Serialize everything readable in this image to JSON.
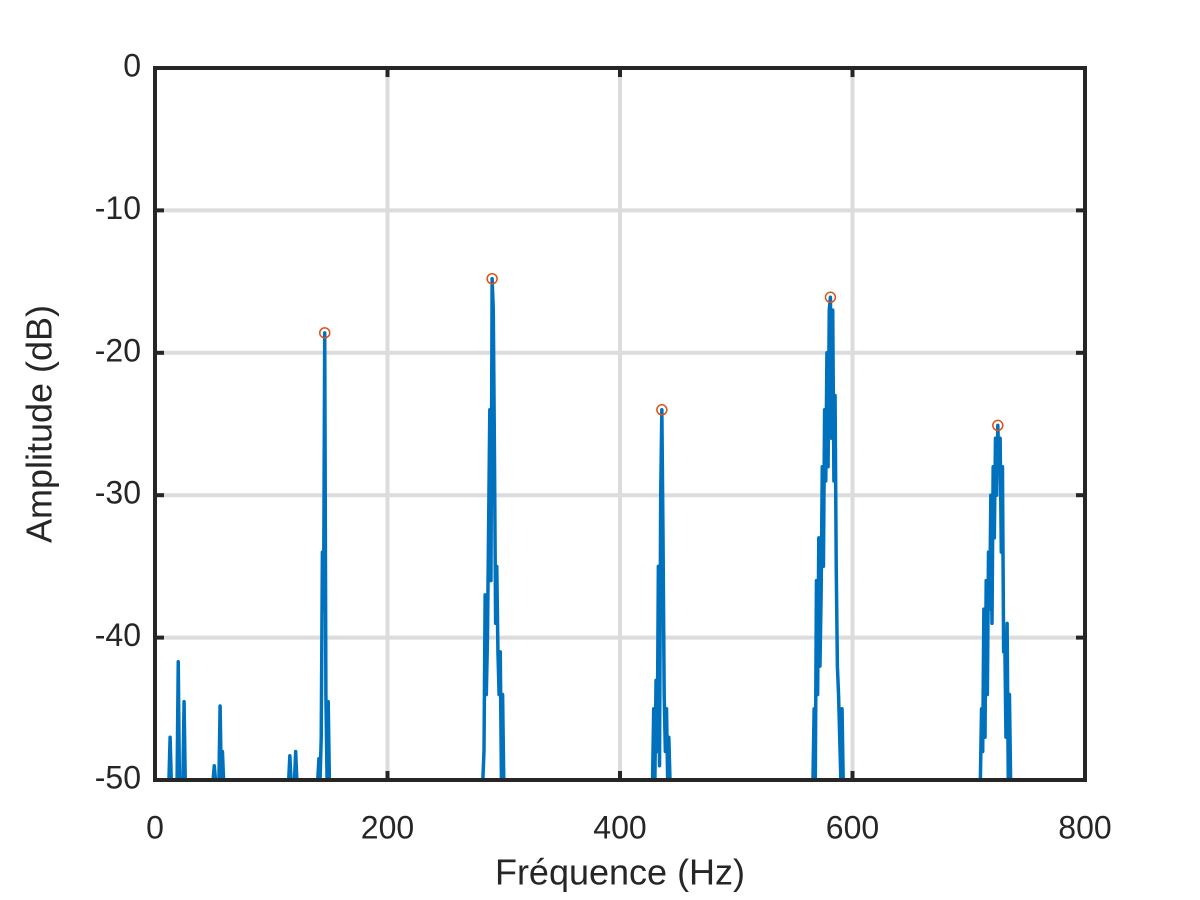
{
  "chart_data": {
    "type": "line",
    "x_label": "Fréquence (Hz)",
    "y_label": "Amplitude (dB)",
    "xlim": [
      0,
      800
    ],
    "ylim": [
      -50,
      0
    ],
    "xticks": [
      0,
      200,
      400,
      600,
      800
    ],
    "yticks": [
      -50,
      -40,
      -30,
      -20,
      -10,
      0
    ],
    "grid": true,
    "series": [
      {
        "color": "#0072bd",
        "x": [
          0,
          12,
          13,
          14,
          19,
          20,
          21,
          24,
          25,
          26,
          50,
          51,
          52,
          55,
          56,
          57,
          58,
          59,
          115,
          116,
          117,
          120,
          121,
          122,
          140,
          141,
          142,
          143,
          144,
          145,
          146,
          147,
          148,
          149,
          150,
          282,
          283,
          284,
          285,
          286,
          287,
          288,
          289,
          290,
          291,
          292,
          293,
          294,
          295,
          296,
          297,
          298,
          299,
          300,
          428,
          429,
          430,
          431,
          432,
          433,
          434,
          435,
          436,
          437,
          438,
          439,
          440,
          441,
          442,
          443,
          566,
          567,
          568,
          569,
          570,
          571,
          572,
          573,
          574,
          575,
          576,
          577,
          578,
          579,
          580,
          581,
          582,
          583,
          584,
          585,
          586,
          587,
          588,
          589,
          590,
          591,
          592,
          710,
          711,
          712,
          713,
          714,
          715,
          716,
          717,
          718,
          719,
          720,
          721,
          722,
          723,
          724,
          725,
          726,
          727,
          728,
          729,
          730,
          731,
          732,
          733,
          734,
          735,
          736,
          800
        ],
        "values": [
          -50,
          -50,
          -47,
          -50,
          -50,
          -41.7,
          -50,
          -50,
          -44.5,
          -50,
          -50,
          -49,
          -50,
          -50,
          -44.8,
          -50,
          -48,
          -50,
          -50,
          -48.3,
          -50,
          -50,
          -48,
          -50,
          -50,
          -48.5,
          -50,
          -47,
          -34,
          -38,
          -18.6,
          -44,
          -50,
          -44.5,
          -50,
          -50,
          -48,
          -37,
          -44,
          -40,
          -32,
          -24,
          -36,
          -14.8,
          -17,
          -27,
          -39,
          -35,
          -41,
          -44,
          -41,
          -50,
          -44,
          -50,
          -50,
          -45,
          -50,
          -43,
          -48,
          -35,
          -49,
          -30,
          -24,
          -33,
          -44,
          -48,
          -45,
          -50,
          -47,
          -50,
          -50,
          -45,
          -50,
          -36,
          -44,
          -33,
          -42,
          -37,
          -28,
          -35,
          -24,
          -29,
          -20,
          -28,
          -17,
          -16.1,
          -26,
          -17,
          -29,
          -23,
          -35,
          -42,
          -44,
          -47,
          -50,
          -45,
          -50,
          -50,
          -45,
          -48,
          -38,
          -47,
          -36,
          -44,
          -34,
          -38,
          -30,
          -39,
          -28,
          -33,
          -26,
          -30,
          -25.1,
          -28,
          -26,
          -34,
          -28,
          -41,
          -40,
          -47,
          -39,
          -50,
          -44,
          -50,
          -50
        ]
      },
      {
        "color": "#d95319",
        "marker": "circle",
        "line": false,
        "x": [
          146,
          290,
          436,
          581,
          725
        ],
        "values": [
          -18.6,
          -14.8,
          -24,
          -16.1,
          -25.1
        ]
      }
    ]
  }
}
